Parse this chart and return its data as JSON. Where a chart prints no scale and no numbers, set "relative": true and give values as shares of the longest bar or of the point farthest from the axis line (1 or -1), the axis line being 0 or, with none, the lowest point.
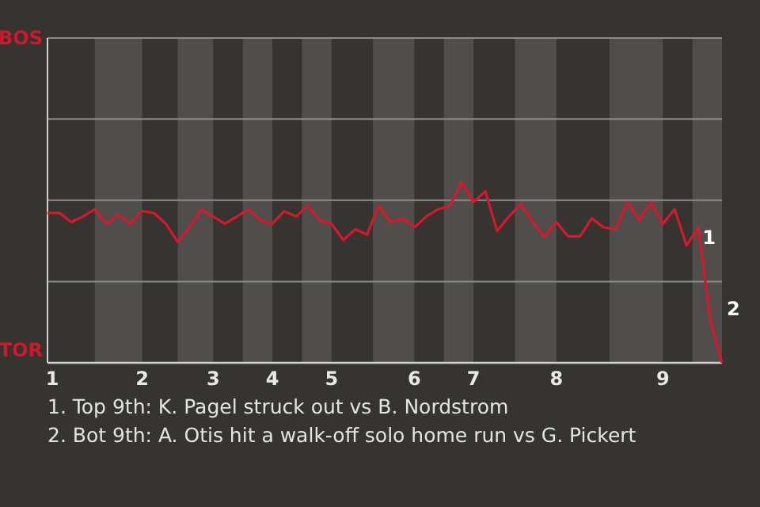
{
  "chart_data": {
    "type": "line",
    "relative": true,
    "categories": [
      "1",
      null,
      null,
      null,
      null,
      null,
      null,
      null,
      "2",
      null,
      null,
      null,
      null,
      null,
      "3",
      null,
      null,
      null,
      null,
      "4",
      null,
      null,
      null,
      null,
      "5",
      null,
      null,
      null,
      null,
      null,
      null,
      "6",
      null,
      null,
      null,
      null,
      "7",
      null,
      null,
      null,
      null,
      null,
      null,
      "8",
      null,
      null,
      null,
      null,
      null,
      null,
      null,
      null,
      "9",
      null,
      null,
      null,
      null,
      null
    ],
    "marker": "none",
    "ref_lines": [
      {
        "axis": "y",
        "value": 0.45,
        "color": "#8c8b88"
      },
      {
        "axis": "y",
        "value": 0.9,
        "color": "#8c8b88"
      },
      {
        "axis": "y",
        "value": 1.35,
        "color": "#8c8b88"
      }
    ],
    "line_style": "solid",
    "series": [
      {
        "color": "#d8172b",
        "values": [
          0.83,
          0.83,
          0.78,
          0.81,
          0.85,
          0.77,
          0.82,
          0.77,
          0.84,
          0.83,
          0.77,
          0.67,
          0.75,
          0.85,
          0.81,
          0.77,
          0.81,
          0.85,
          0.79,
          0.77,
          0.84,
          0.81,
          0.87,
          0.79,
          0.77,
          0.68,
          0.74,
          0.71,
          0.87,
          0.78,
          0.8,
          0.75,
          0.81,
          0.85,
          0.87,
          1,
          0.89,
          0.95,
          0.73,
          0.81,
          0.88,
          0.78,
          0.7,
          0.78,
          0.7,
          0.7,
          0.8,
          0.75,
          0.74,
          0.89,
          0.79,
          0.89,
          0.77,
          0.85,
          0.65,
          0.75,
          0.24,
          0
        ]
      }
    ],
    "annotations": [
      {
        "text": "1",
        "y": 0.65
      },
      "2",
      "BOS",
      "TOR",
      "1. Top 9th: K. Pagel struck out vs B. Nordstrom",
      "2. Bot 9th: A. Otis hit a walk-off solo home run vs G. Pickert"
    ]
  }
}
